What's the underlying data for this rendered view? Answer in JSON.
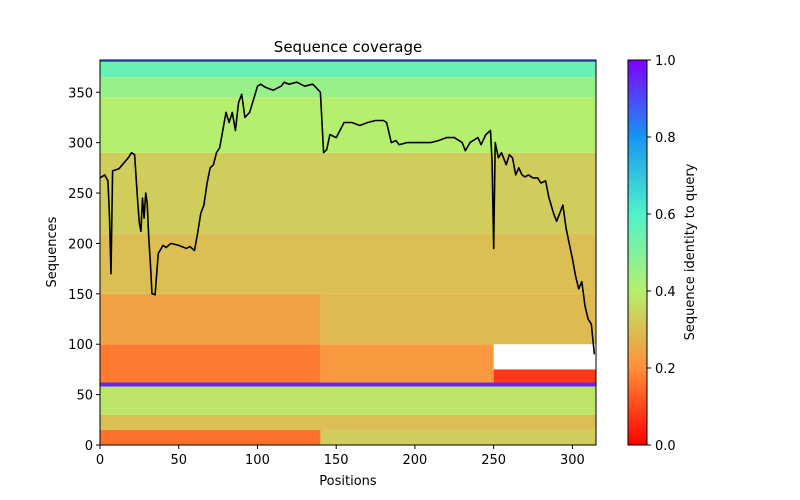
{
  "chart_data": {
    "type": "heatmap",
    "title": "Sequence coverage",
    "xlabel": "Positions",
    "ylabel": "Sequences",
    "xlim": [
      0,
      315
    ],
    "ylim": [
      0,
      382
    ],
    "xticks": [
      0,
      50,
      100,
      150,
      200,
      250,
      300
    ],
    "yticks": [
      0,
      50,
      100,
      150,
      200,
      250,
      300,
      350
    ],
    "colorbar": {
      "label": "Sequence identity to query",
      "range": [
        0.0,
        1.0
      ],
      "ticks": [
        "0.0",
        "0.2",
        "0.4",
        "0.6",
        "0.8",
        "1.0"
      ],
      "colormap": "rainbow_r"
    },
    "bands": [
      {
        "y0": 0,
        "y1": 15,
        "x0": 0,
        "x1": 140,
        "identity": 0.16
      },
      {
        "y0": 0,
        "y1": 15,
        "x0": 140,
        "x1": 315,
        "identity": 0.33
      },
      {
        "y0": 15,
        "y1": 30,
        "x0": 0,
        "x1": 315,
        "identity": 0.3
      },
      {
        "y0": 30,
        "y1": 58,
        "x0": 0,
        "x1": 315,
        "identity": 0.38
      },
      {
        "y0": 58,
        "y1": 62,
        "x0": 0,
        "x1": 315,
        "identity": 0.95
      },
      {
        "y0": 62,
        "y1": 100,
        "x0": 0,
        "x1": 140,
        "identity": 0.17
      },
      {
        "y0": 62,
        "y1": 100,
        "x0": 140,
        "x1": 250,
        "identity": 0.22
      },
      {
        "y0": 62,
        "y1": 75,
        "x0": 250,
        "x1": 315,
        "identity": 0.08
      },
      {
        "y0": 100,
        "y1": 150,
        "x0": 0,
        "x1": 140,
        "identity": 0.24
      },
      {
        "y0": 100,
        "y1": 150,
        "x0": 140,
        "x1": 315,
        "identity": 0.29
      },
      {
        "y0": 150,
        "y1": 210,
        "x0": 0,
        "x1": 315,
        "identity": 0.3
      },
      {
        "y0": 210,
        "y1": 290,
        "x0": 0,
        "x1": 315,
        "identity": 0.33
      },
      {
        "y0": 290,
        "y1": 345,
        "x0": 0,
        "x1": 315,
        "identity": 0.4
      },
      {
        "y0": 345,
        "y1": 365,
        "x0": 0,
        "x1": 315,
        "identity": 0.46
      },
      {
        "y0": 365,
        "y1": 380,
        "x0": 0,
        "x1": 315,
        "identity": 0.55
      },
      {
        "y0": 380,
        "y1": 382,
        "x0": 0,
        "x1": 315,
        "identity": 0.85
      }
    ],
    "coverage_line": {
      "name": "coverage",
      "color": "#000000",
      "x": [
        0,
        3,
        5,
        6,
        7,
        8,
        12,
        18,
        20,
        22,
        24,
        25,
        26,
        27,
        28,
        29,
        30,
        31,
        32,
        33,
        35,
        36,
        37,
        40,
        42,
        45,
        50,
        55,
        57,
        60,
        62,
        64,
        66,
        68,
        70,
        72,
        74,
        76,
        80,
        82,
        84,
        86,
        88,
        90,
        92,
        95,
        97,
        100,
        102,
        105,
        110,
        115,
        117,
        120,
        125,
        130,
        135,
        137,
        140,
        141,
        142,
        144,
        146,
        150,
        155,
        160,
        165,
        170,
        175,
        180,
        182,
        185,
        188,
        190,
        195,
        200,
        205,
        210,
        215,
        220,
        225,
        230,
        232,
        235,
        240,
        242,
        245,
        248,
        249,
        250,
        251,
        253,
        255,
        258,
        260,
        262,
        264,
        266,
        268,
        270,
        272,
        275,
        278,
        280,
        283,
        285,
        288,
        290,
        292,
        294,
        296,
        298,
        300,
        302,
        304,
        306,
        308,
        310,
        312,
        314
      ],
      "y": [
        265,
        268,
        262,
        230,
        170,
        272,
        274,
        285,
        290,
        288,
        240,
        220,
        212,
        245,
        225,
        250,
        240,
        205,
        180,
        150,
        149,
        170,
        190,
        198,
        196,
        200,
        198,
        195,
        197,
        193,
        210,
        230,
        238,
        260,
        275,
        278,
        290,
        295,
        330,
        320,
        330,
        312,
        340,
        348,
        325,
        330,
        340,
        356,
        358,
        355,
        352,
        356,
        360,
        358,
        360,
        356,
        358,
        355,
        350,
        320,
        290,
        293,
        308,
        305,
        320,
        320,
        317,
        320,
        322,
        322,
        320,
        300,
        302,
        298,
        300,
        300,
        300,
        300,
        302,
        305,
        305,
        300,
        292,
        300,
        305,
        298,
        308,
        312,
        280,
        195,
        300,
        285,
        290,
        278,
        288,
        285,
        268,
        275,
        268,
        266,
        268,
        265,
        265,
        260,
        262,
        246,
        230,
        222,
        230,
        238,
        215,
        200,
        185,
        168,
        155,
        162,
        138,
        125,
        120,
        90
      ]
    }
  }
}
